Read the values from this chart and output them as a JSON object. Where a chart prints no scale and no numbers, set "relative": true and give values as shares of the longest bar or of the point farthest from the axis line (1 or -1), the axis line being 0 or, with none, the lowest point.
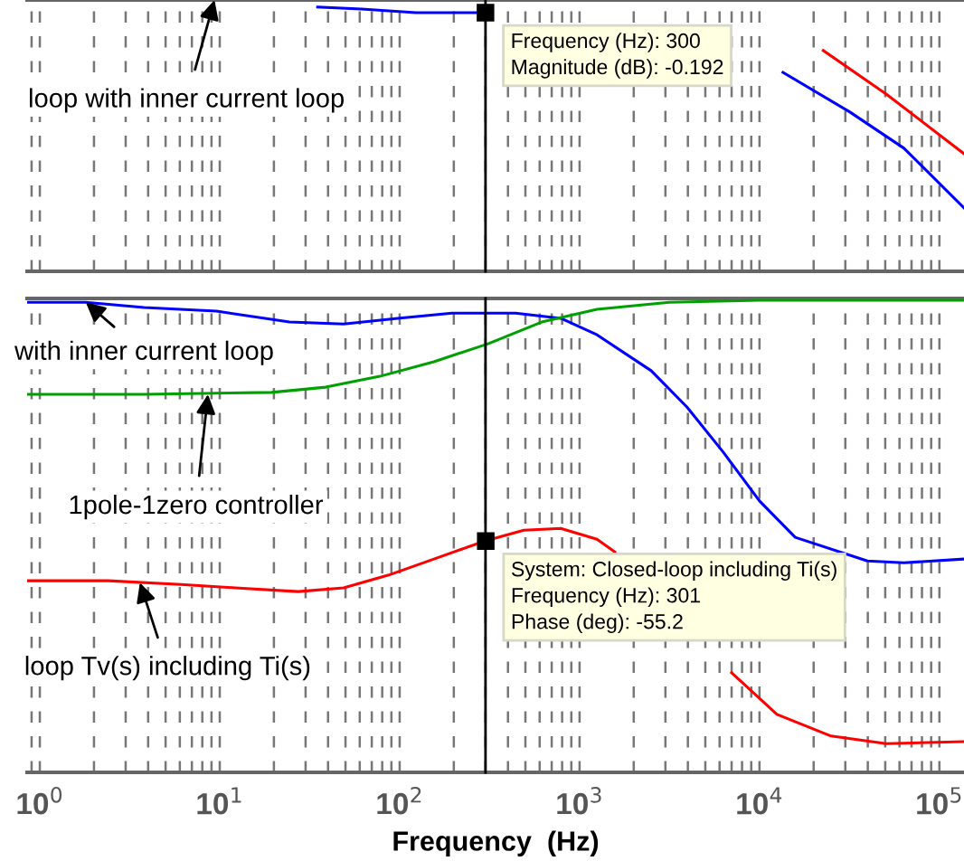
{
  "chart_data": [
    {
      "type": "line",
      "log": "x",
      "relative": true,
      "grid": "x",
      "tick_labels": false,
      "xlim": [
        0.85,
        137000
      ],
      "xticks": [
        {
          "value": 1,
          "label": null
        },
        {
          "value": 10,
          "label": null
        },
        {
          "value": 100,
          "label": null
        },
        {
          "value": 1000,
          "label": null
        },
        {
          "value": 10000,
          "label": null
        },
        {
          "value": 100000,
          "label": null
        }
      ],
      "series": [
        {
          "color": "#0000ff",
          "x": [
            35,
            61.5,
            123,
            277,
            1000,
            13500,
            31800,
            63500,
            137000
          ],
          "values": [
            1.0,
            0.993,
            0.979,
            0.979,
            null,
            0.753,
            0.603,
            0.466,
            0.24
          ]
        },
        {
          "color": "#ff0000",
          "x": [
            22600,
            50600,
            137000
          ],
          "values": [
            0.836,
            0.671,
            0.445
          ]
        }
      ],
      "ref_lines": [
        {
          "axis": "x",
          "value": 300,
          "color": "#000000"
        }
      ],
      "annotations": [
        "loop with inner current loop",
        {
          "text": "Frequency (Hz): 300\nMagnitude (dB): -0.192",
          "x": 300,
          "y": 0.979
        }
      ]
    },
    {
      "type": "line",
      "log": "x",
      "relative": true,
      "grid": "x",
      "tick_labels": "x",
      "xlim": [
        0.85,
        137000
      ],
      "xlabel": "Frequency  (Hz)",
      "xticks": [
        {
          "value": 1,
          "label": "10$^{0}$"
        },
        {
          "value": 10,
          "label": "10$^{1}$"
        },
        {
          "value": 100,
          "label": "10$^{2}$"
        },
        {
          "value": 1000,
          "label": "10$^{3}$"
        },
        {
          "value": 10000,
          "label": "10$^{4}$"
        },
        {
          "value": 100000,
          "label": "10$^{5}$"
        }
      ],
      "series": [
        {
          "color": "#0000ff",
          "x": [
            0.85,
            1.8,
            3.8,
            9.6,
            24.4,
            48.8,
            97.6,
            195,
            441,
            786,
            1250,
            2500,
            3950,
            6300,
            10000,
            15800,
            39800,
            63500,
            137000
          ],
          "values": [
            0.996,
            0.996,
            0.985,
            0.977,
            0.954,
            0.95,
            0.962,
            0.973,
            0.973,
            0.962,
            0.927,
            0.851,
            0.774,
            0.678,
            0.575,
            0.498,
            0.448,
            0.444,
            0.452
          ]
        },
        {
          "color": "#00a000",
          "x": [
            0.85,
            3.8,
            19.4,
            38.8,
            77.6,
            155,
            310,
            616,
            1250,
            3150,
            10000,
            137000
          ],
          "values": [
            0.801,
            0.801,
            0.805,
            0.816,
            0.839,
            0.87,
            0.908,
            0.954,
            0.981,
            0.996,
            1.0,
            1.0
          ]
        },
        {
          "color": "#ff0000",
          "x": [
            0.85,
            2.4,
            6.1,
            12.2,
            27.3,
            48.8,
            86.9,
            155,
            297,
            490,
            786,
            1250,
            1570,
            3000,
            7000,
            12500,
            25000,
            50600,
            137000
          ],
          "values": [
            0.406,
            0.406,
            0.398,
            0.391,
            0.383,
            0.391,
            0.418,
            0.452,
            0.49,
            0.513,
            0.517,
            0.494,
            0.467,
            null,
            0.211,
            0.123,
            0.077,
            0.061,
            0.065
          ]
        }
      ],
      "ref_lines": [
        {
          "axis": "x",
          "value": 300,
          "color": "#000000"
        }
      ],
      "annotations": [
        {
          "text": "with inner current loop",
          "x": 1.8,
          "y": 0.996
        },
        {
          "text": "1pole-1zero controller",
          "x": 8.6,
          "y": 0.801
        },
        {
          "text": "loop Tv(s) including Ti(s)",
          "x": 3.6,
          "y": 0.402
        },
        {
          "text": "System: Closed-loop including Ti(s)\nFrequency (Hz): 301\nPhase (deg): -55.2",
          "x": 301,
          "y": 0.49
        }
      ]
    }
  ]
}
